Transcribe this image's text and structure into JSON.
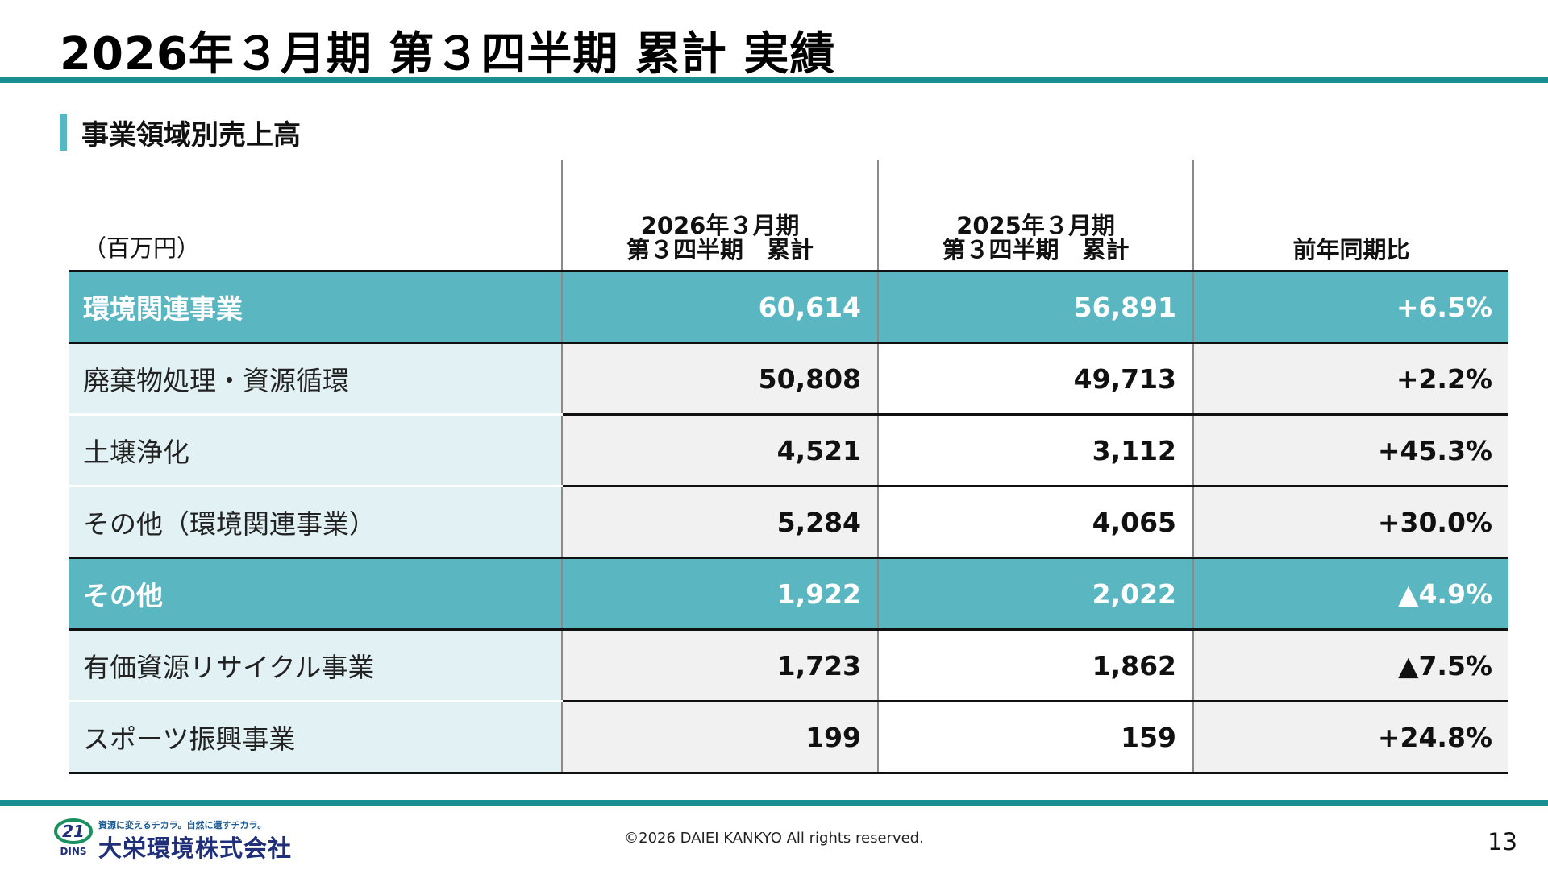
{
  "header": {
    "title": "2026年３月期 第３四半期 累計 実績"
  },
  "section": {
    "label": "事業領域別売上高"
  },
  "table": {
    "unit": "（百万円）",
    "columns": [
      {
        "line1": "2026年３月期",
        "line2": "第３四半期　累計"
      },
      {
        "line1": "2025年３月期",
        "line2": "第３四半期　累計"
      },
      {
        "line1": "",
        "line2": "前年同期比"
      }
    ],
    "rows": [
      {
        "name": "環境関連事業",
        "cur": "60,614",
        "prev": "56,891",
        "yoy": "+6.5%"
      },
      {
        "name": "廃棄物処理・資源循環",
        "cur": "50,808",
        "prev": "49,713",
        "yoy": "+2.2%"
      },
      {
        "name": "土壌浄化",
        "cur": "4,521",
        "prev": "3,112",
        "yoy": "+45.3%"
      },
      {
        "name": "その他（環境関連事業）",
        "cur": "5,284",
        "prev": "4,065",
        "yoy": "+30.0%"
      },
      {
        "name": "その他",
        "cur": "1,922",
        "prev": "2,022",
        "yoy": "▲4.9%"
      },
      {
        "name": "有価資源リサイクル事業",
        "cur": "1,723",
        "prev": "1,862",
        "yoy": "▲7.5%"
      },
      {
        "name": "スポーツ振興事業",
        "cur": "199",
        "prev": "159",
        "yoy": "+24.8%"
      }
    ]
  },
  "footer": {
    "logo_tagline": "資源に変えるチカラ。自然に還すチカラ。",
    "logo_mark_text": "21",
    "logo_mark_sub": "DINS",
    "company": "大栄環境株式会社",
    "copyright": "©2026 DAIEI KANKYO All rights reserved.",
    "page": "13"
  },
  "colors": {
    "teal_rule": "#1a8f8f",
    "category_fill": "#5ab6c1",
    "sub_label_fill": "#e1f1f4"
  }
}
